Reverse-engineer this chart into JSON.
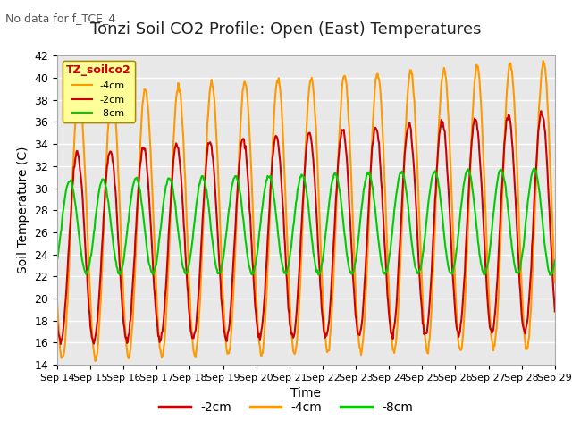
{
  "title": "Tonzi Soil CO2 Profile: Open (East) Temperatures",
  "subtitle": "No data for f_TCE_4",
  "ylabel": "Soil Temperature (C)",
  "xlabel": "Time",
  "ylim": [
    14,
    42
  ],
  "xtick_labels": [
    "Sep 14",
    "Sep 15",
    "Sep 16",
    "Sep 17",
    "Sep 18",
    "Sep 19",
    "Sep 20",
    "Sep 21",
    "Sep 22",
    "Sep 23",
    "Sep 24",
    "Sep 25",
    "Sep 26",
    "Sep 27",
    "Sep 28",
    "Sep 29"
  ],
  "legend_label": "TZ_soilco2",
  "series_labels": [
    "-2cm",
    "-4cm",
    "-8cm"
  ],
  "series_colors": [
    "#cc0000",
    "#ff9900",
    "#00cc00"
  ],
  "background_color": "#e8e8e8",
  "fig_background": "#ffffff",
  "grid_color": "#ffffff",
  "title_fontsize": 13,
  "axis_fontsize": 10,
  "tick_fontsize": 9,
  "legend_fontsize": 10,
  "line_width": 1.5,
  "days": 15,
  "points_per_day": 48
}
